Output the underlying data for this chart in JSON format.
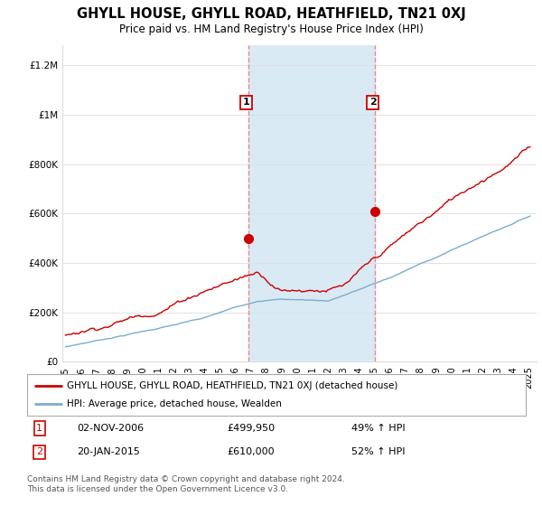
{
  "title": "GHYLL HOUSE, GHYLL ROAD, HEATHFIELD, TN21 0XJ",
  "subtitle": "Price paid vs. HM Land Registry's House Price Index (HPI)",
  "ylabel_ticks": [
    "£0",
    "£200K",
    "£400K",
    "£600K",
    "£800K",
    "£1M",
    "£1.2M"
  ],
  "ytick_values": [
    0,
    200000,
    400000,
    600000,
    800000,
    1000000,
    1200000
  ],
  "ylim": [
    0,
    1280000
  ],
  "xlim_start": 1994.8,
  "xlim_end": 2025.5,
  "red_line_color": "#cc0000",
  "blue_line_color": "#7aadcc",
  "sale1_x": 2006.84,
  "sale1_y": 499950,
  "sale2_x": 2015.05,
  "sale2_y": 610000,
  "vline_color": "#ee8888",
  "highlight_color": "#daeaf5",
  "legend_label_red": "GHYLL HOUSE, GHYLL ROAD, HEATHFIELD, TN21 0XJ (detached house)",
  "legend_label_blue": "HPI: Average price, detached house, Wealden",
  "sale1_date": "02-NOV-2006",
  "sale1_price": "£499,950",
  "sale1_hpi": "49% ↑ HPI",
  "sale2_date": "20-JAN-2015",
  "sale2_price": "£610,000",
  "sale2_hpi": "52% ↑ HPI",
  "footnote": "Contains HM Land Registry data © Crown copyright and database right 2024.\nThis data is licensed under the Open Government Licence v3.0.",
  "background_color": "#ffffff",
  "grid_color": "#dddddd"
}
